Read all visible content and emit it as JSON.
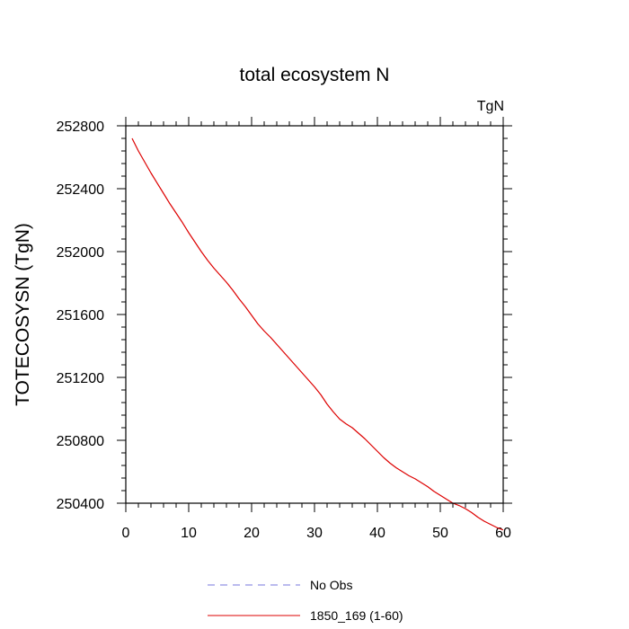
{
  "chart_data": {
    "type": "line",
    "title": "total ecosystem N",
    "units_label": "TgN",
    "ylabel": "TOTECOSYSN  (TgN)",
    "xlabel": "",
    "xlim": [
      0,
      60
    ],
    "ylim": [
      250400,
      252800
    ],
    "x_ticks": [
      0,
      10,
      20,
      30,
      40,
      50,
      60
    ],
    "x_tick_labels": [
      "0",
      "10",
      "20",
      "30",
      "40",
      "50",
      "60"
    ],
    "y_ticks": [
      250400,
      250800,
      251200,
      251600,
      252000,
      252400,
      252800
    ],
    "y_tick_labels": [
      "250400",
      "250800",
      "251200",
      "251600",
      "252000",
      "252400",
      "252800"
    ],
    "x_minor_step": 2,
    "y_minor_step": 80,
    "grid": false,
    "legend_position": "bottom",
    "series": [
      {
        "name": "No Obs",
        "color": "#7777dd",
        "dash": true,
        "x": [],
        "y": []
      },
      {
        "name": "1850_169 (1-60)",
        "color": "#dd0000",
        "dash": false,
        "x": [
          1,
          2,
          3,
          4,
          5,
          6,
          7,
          8,
          9,
          10,
          11,
          12,
          13,
          14,
          15,
          16,
          17,
          18,
          19,
          20,
          21,
          22,
          23,
          24,
          25,
          26,
          27,
          28,
          29,
          30,
          31,
          32,
          33,
          34,
          35,
          36,
          37,
          38,
          39,
          40,
          41,
          42,
          43,
          44,
          45,
          46,
          47,
          48,
          49,
          50,
          51,
          52,
          53,
          54,
          55,
          56,
          57,
          58,
          59,
          60
        ],
        "y": [
          252720,
          252640,
          252570,
          252500,
          252435,
          252370,
          252305,
          252245,
          252185,
          252120,
          252060,
          252000,
          251945,
          251895,
          251850,
          251805,
          251755,
          251700,
          251650,
          251595,
          251540,
          251495,
          251455,
          251410,
          251365,
          251320,
          251275,
          251230,
          251185,
          251140,
          251090,
          251030,
          250980,
          250935,
          250905,
          250880,
          250845,
          250810,
          250770,
          250730,
          250690,
          250655,
          250625,
          250600,
          250575,
          250555,
          250530,
          250505,
          250475,
          250450,
          250425,
          250400,
          250385,
          250365,
          250340,
          250310,
          250285,
          250265,
          250245,
          250230
        ]
      }
    ]
  }
}
